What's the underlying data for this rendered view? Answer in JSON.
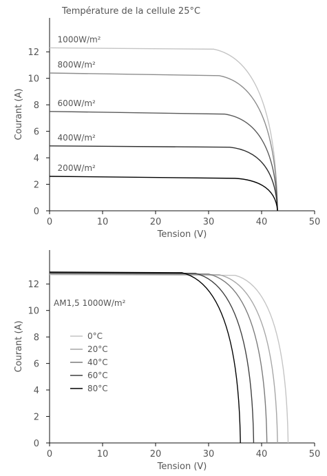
{
  "chart_data": [
    {
      "type": "line",
      "title": "Température de la cellule 25°C",
      "xlabel": "Tension (V)",
      "ylabel": "Courant (A)",
      "xlim": [
        0,
        50
      ],
      "ylim": [
        0,
        13
      ],
      "xticks": [
        "0",
        "10",
        "20",
        "30",
        "40",
        "50"
      ],
      "yticks": [
        "0",
        "2",
        "4",
        "6",
        "8",
        "10",
        "12"
      ],
      "grid": false,
      "voc": 43,
      "series": [
        {
          "name": "1000W/m²",
          "isc": 12.3,
          "v_knee": 31,
          "i_knee": 12.2,
          "color": "#c4c4c4"
        },
        {
          "name": "800W/m²",
          "isc": 10.4,
          "v_knee": 32,
          "i_knee": 10.2,
          "color": "#8c8c8c"
        },
        {
          "name": "600W/m²",
          "isc": 7.5,
          "v_knee": 33,
          "i_knee": 7.3,
          "color": "#5a5a5a"
        },
        {
          "name": "400W/m²",
          "isc": 4.9,
          "v_knee": 34,
          "i_knee": 4.8,
          "color": "#2e2e2e"
        },
        {
          "name": "200W/m²",
          "isc": 2.6,
          "v_knee": 35,
          "i_knee": 2.45,
          "color": "#000000"
        }
      ]
    },
    {
      "type": "line",
      "annotation": "AM1,5 1000W/m²",
      "xlabel": "Tension (V)",
      "ylabel": "Courant (A)",
      "xlim": [
        0,
        50
      ],
      "ylim": [
        0,
        13
      ],
      "xticks": [
        "0",
        "10",
        "20",
        "30",
        "40",
        "50"
      ],
      "yticks": [
        "0",
        "2",
        "4",
        "6",
        "8",
        "10",
        "12"
      ],
      "grid": false,
      "legend": "middle-left",
      "series": [
        {
          "name": "0°C",
          "isc": 12.7,
          "v_knee": 35,
          "voc": 45,
          "color": "#c4c4c4"
        },
        {
          "name": "20°C",
          "isc": 12.75,
          "v_knee": 32,
          "voc": 43,
          "color": "#a6a6a6"
        },
        {
          "name": "40°C",
          "isc": 12.8,
          "v_knee": 30,
          "voc": 41,
          "color": "#7a7a7a"
        },
        {
          "name": "60°C",
          "isc": 12.85,
          "v_knee": 27.5,
          "voc": 38.5,
          "color": "#3e3e3e"
        },
        {
          "name": "80°C",
          "isc": 12.9,
          "v_knee": 25,
          "voc": 36,
          "color": "#000000"
        }
      ]
    }
  ]
}
